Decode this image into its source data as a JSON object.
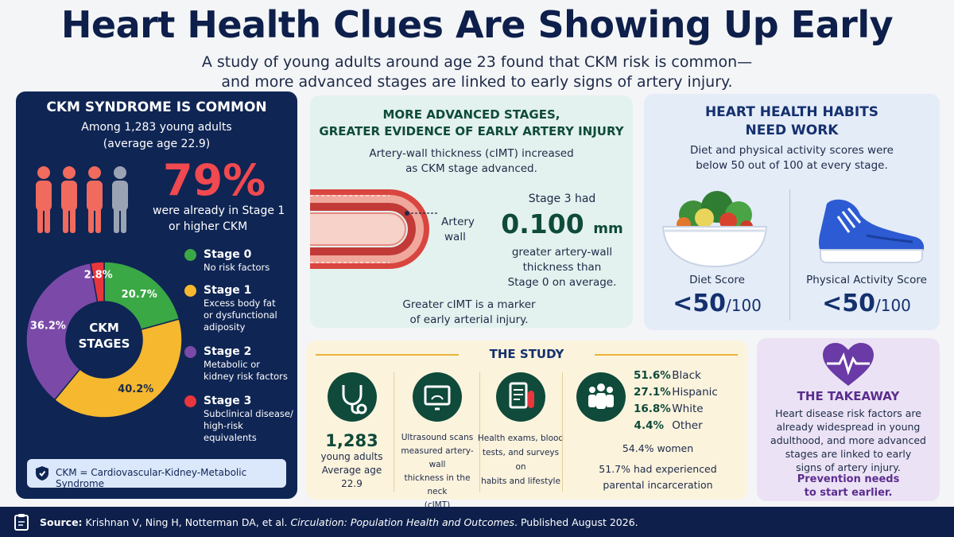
{
  "header": {
    "title": "Heart Health Clues Are Showing Up Early",
    "subtitle_line1": "A study of young adults around age 23 found that CKM risk is common—",
    "subtitle_line2": "and more advanced stages are linked to early signs of artery injury."
  },
  "ckm_panel": {
    "heading": "CKM SYNDROME IS COMMON",
    "sub_line1": "Among 1,283 young adults",
    "sub_line2": "(average age 22.9)",
    "big_percent": "79%",
    "percent_text_line1": "were already in Stage 1",
    "percent_text_line2": "or higher CKM",
    "center_line1": "CKM",
    "center_line2": "STAGES",
    "legend": [
      {
        "title": "Stage 0",
        "desc": [
          "No risk factors"
        ],
        "color": "#3aa845"
      },
      {
        "title": "Stage 1",
        "desc": [
          "Excess body fat",
          "or dysfunctional",
          "adiposity"
        ],
        "color": "#f5b82e"
      },
      {
        "title": "Stage 2",
        "desc": [
          "Metabolic or",
          "kidney risk factors"
        ],
        "color": "#7b4aa8"
      },
      {
        "title": "Stage 3",
        "desc": [
          "Subclinical disease/",
          "high-risk",
          "equivalents"
        ],
        "color": "#e8363c"
      }
    ],
    "note": "CKM = Cardiovascular-Kidney-Metabolic Syndrome"
  },
  "chart_data": {
    "type": "pie",
    "categories": [
      "Stage 0",
      "Stage 1",
      "Stage 2",
      "Stage 3"
    ],
    "values": [
      20.7,
      40.2,
      36.2,
      2.8
    ],
    "labels": [
      "20.7%",
      "40.2%",
      "36.2%",
      "2.8%"
    ],
    "colors": [
      "#3aa845",
      "#f5b82e",
      "#7b4aa8",
      "#e8363c"
    ]
  },
  "artery_panel": {
    "heading_line1": "MORE ADVANCED STAGES,",
    "heading_line2": "GREATER EVIDENCE OF EARLY ARTERY INJURY",
    "sub_line1": "Artery-wall thickness (cIMT) increased",
    "sub_line2": "as CKM stage advanced.",
    "artery_label_line1": "Artery",
    "artery_label_line2": "wall",
    "stage3_intro": "Stage 3 had",
    "stage3_value": "0.100",
    "stage3_unit": "mm",
    "stage3_line1": "greater artery-wall",
    "stage3_line2": "thickness than",
    "stage3_line3": "Stage 0 on average.",
    "foot_line1": "Greater cIMT is a marker",
    "foot_line2": "of early arterial injury."
  },
  "habits_panel": {
    "heading_line1": "HEART HEALTH HABITS",
    "heading_line2": "NEED WORK",
    "sub_line1": "Diet and physical activity scores were",
    "sub_line2": "below 50 out of 100 at every stage.",
    "diet_label": "Diet Score",
    "diet_value": "<50",
    "diet_max": "/100",
    "activity_label": "Physical Activity Score",
    "activity_value": "<50",
    "activity_max": "/100"
  },
  "study_panel": {
    "heading": "THE STUDY",
    "count": "1,283",
    "count_line1": "young adults",
    "count_line2": "Average age 22.9",
    "ultra_line1": "Ultrasound scans",
    "ultra_line2": "measured artery-wall",
    "ultra_line3": "thickness in the neck",
    "ultra_line4": "(cIMT)",
    "exam_line1": "Health exams, blood",
    "exam_line2": "tests, and surveys on",
    "exam_line3": "habits and lifestyle",
    "demographics": [
      {
        "pct": "51.6%",
        "label": "Black"
      },
      {
        "pct": "27.1%",
        "label": "Hispanic"
      },
      {
        "pct": "16.8%",
        "label": "White"
      },
      {
        "pct": "4.4%",
        "label": "Other"
      }
    ],
    "women": "54.4% women",
    "parental_line1": "51.7% had experienced",
    "parental_line2": "parental incarceration"
  },
  "takeaway_panel": {
    "heading": "THE TAKEAWAY",
    "text_line1": "Heart disease risk factors are",
    "text_line2": "already widespread in young",
    "text_line3": "adulthood, and more advanced",
    "text_line4": "stages are linked to early",
    "text_line5": "signs of artery injury.",
    "cta_line1": "Prevention needs",
    "cta_line2": "to start earlier."
  },
  "footer": {
    "source_label": "Source:",
    "authors": "Krishnan V, Ning H, Notterman DA, et al.",
    "journal": "Circulation: Population Health and Outcomes",
    "published": ". Published August 2026."
  }
}
